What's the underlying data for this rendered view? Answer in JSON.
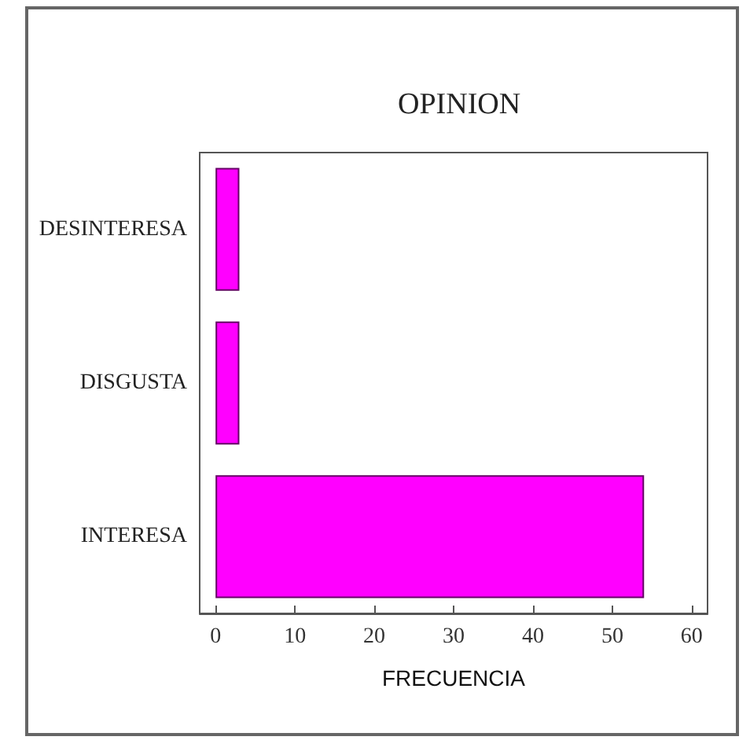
{
  "chart_data": {
    "type": "bar",
    "orientation": "horizontal",
    "title": "OPINION",
    "xlabel": "FRECUENCIA",
    "categories": [
      "DESINTERESA",
      "DISGUSTA",
      "INTERESA"
    ],
    "values": [
      3,
      3,
      54
    ],
    "color": "#ff00ff",
    "xlim": [
      -2,
      62
    ],
    "xticks": [
      0,
      10,
      20,
      30,
      40,
      50,
      60
    ],
    "grid": false
  }
}
